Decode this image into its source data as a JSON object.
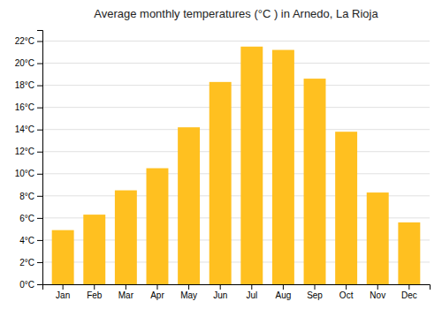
{
  "chart_data": {
    "type": "bar",
    "title": "Average monthly temperatures (°C ) in Arnedo, La Rioja",
    "categories": [
      "Jan",
      "Feb",
      "Mar",
      "Apr",
      "May",
      "Jun",
      "Jul",
      "Aug",
      "Sep",
      "Oct",
      "Nov",
      "Dec"
    ],
    "values": [
      4.9,
      6.3,
      8.5,
      10.5,
      14.2,
      18.3,
      21.5,
      21.2,
      18.6,
      13.8,
      8.3,
      5.6
    ],
    "color": "#FFC020",
    "ylim": [
      0,
      23
    ],
    "yticks": [
      {
        "value": 0,
        "label": "0°C"
      },
      {
        "value": 2,
        "label": "2°C"
      },
      {
        "value": 4,
        "label": "4°C"
      },
      {
        "value": 6,
        "label": "6°C"
      },
      {
        "value": 8,
        "label": "8°C"
      },
      {
        "value": 10,
        "label": "10°C"
      },
      {
        "value": 12,
        "label": "12°C"
      },
      {
        "value": 14,
        "label": "14°C"
      },
      {
        "value": 16,
        "label": "16°C"
      },
      {
        "value": 18,
        "label": "18°C"
      },
      {
        "value": 20,
        "label": "20°C"
      },
      {
        "value": 22,
        "label": "22°C"
      }
    ],
    "grid": true
  }
}
